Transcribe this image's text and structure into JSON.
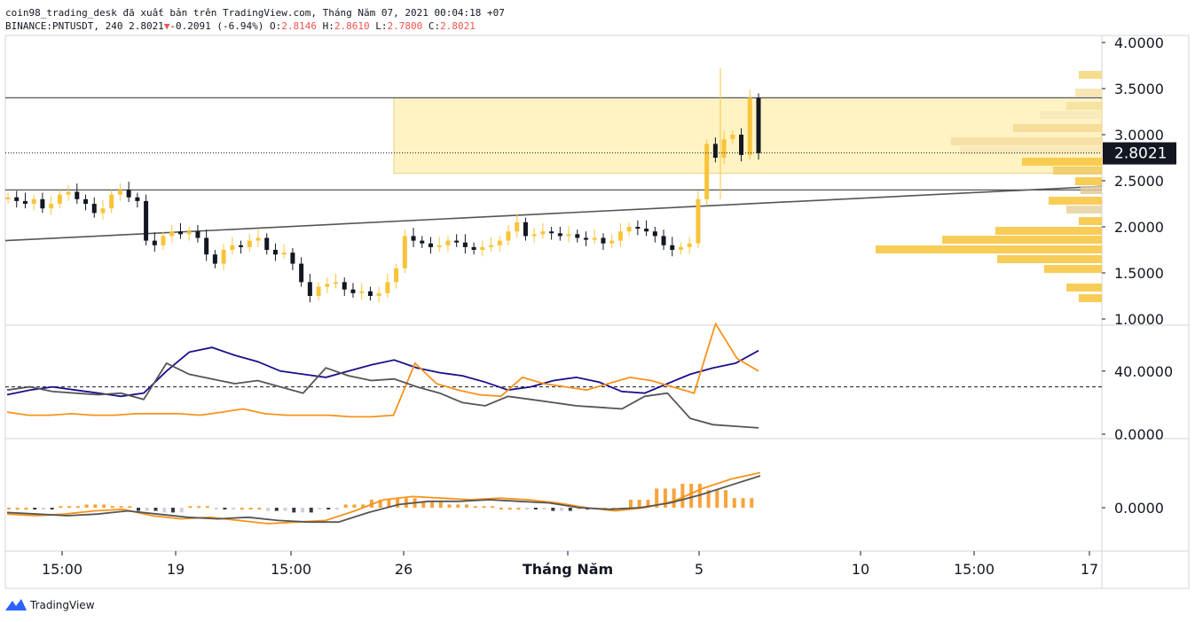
{
  "header": {
    "line1": "coin98_trading_desk đã xuất bản trên TradingView.com, Tháng Năm 07, 2021 00:04:18 +07",
    "symbol": "BINANCE:PNTUSDT, 240 2.8021",
    "change": "-0.2091 (-6.94%)",
    "o_label": " O:",
    "o": "2.8146",
    "h_label": " H:",
    "h": "2.8610",
    "l_label": " L:",
    "l": "2.7800",
    "c_label": " C:",
    "c": "2.8021"
  },
  "brand": {
    "name": "TradingView"
  },
  "colors": {
    "up": "#f7c43a",
    "down": "#131722",
    "zone": "#fff3c4",
    "sma": "#1a0f8c",
    "orange": "#f7931a",
    "gray": "#555555"
  },
  "chart_data": [
    {
      "type": "candlestick",
      "panel": "price",
      "y_ticks": [
        "4.0000",
        "3.5000",
        "3.0000",
        "2.5000",
        "2.0000",
        "1.5000",
        "1.0000"
      ],
      "ylim": [
        0.9,
        4.1
      ],
      "last_price_label": "2.8021",
      "horizontal_levels": [
        3.4,
        2.4
      ],
      "trendline": {
        "from": 1.85,
        "to": 2.44
      },
      "resistance_zone": {
        "low": 2.58,
        "high": 3.4
      },
      "ohlc_sample": [
        2.8146,
        2.861,
        2.78,
        2.8021
      ]
    },
    {
      "type": "line",
      "panel": "indicator",
      "y_ticks": [
        "40.0000",
        "0.0000"
      ],
      "series": [
        {
          "color": "navy",
          "values": [
            25,
            28,
            30,
            28,
            26,
            24,
            26,
            40,
            52,
            55,
            50,
            46,
            40,
            38,
            36,
            40,
            44,
            47,
            42,
            39,
            37,
            33,
            28,
            30,
            34,
            36,
            33,
            27,
            26,
            32,
            38,
            42,
            45,
            53
          ]
        },
        {
          "color": "orange",
          "values": [
            14,
            12,
            12,
            13,
            12,
            12,
            13,
            13,
            13,
            12,
            14,
            16,
            13,
            12,
            12,
            12,
            11,
            11,
            12,
            45,
            32,
            28,
            25,
            24,
            36,
            32,
            30,
            28,
            32,
            36,
            34,
            30,
            26,
            70,
            48,
            40
          ]
        },
        {
          "color": "gray",
          "values": [
            28,
            30,
            27,
            26,
            25,
            26,
            22,
            45,
            38,
            35,
            32,
            34,
            30,
            26,
            42,
            37,
            34,
            35,
            30,
            26,
            20,
            18,
            24,
            22,
            20,
            18,
            17,
            16,
            24,
            26,
            10,
            6,
            5,
            4
          ]
        }
      ],
      "reference": 30
    },
    {
      "type": "histogram",
      "panel": "macd",
      "y_ticks": [
        "0.0000"
      ],
      "values": [
        0,
        -0.01,
        0.01,
        0.02,
        0.01,
        -0.02,
        -0.03,
        0.01,
        -0.01,
        0,
        -0.02,
        -0.03,
        -0.01,
        0.02,
        0.05,
        0.06,
        0.04,
        0.02,
        0.01,
        0.0,
        -0.01,
        -0.02,
        -0.01,
        0,
        0.05,
        0.12,
        0.15,
        0.11,
        0.06
      ],
      "signal_orange": [
        -0.04,
        -0.05,
        -0.04,
        -0.02,
        -0.01,
        -0.05,
        -0.07,
        -0.06,
        -0.08,
        -0.1,
        -0.09,
        -0.08,
        -0.02,
        0.05,
        0.07,
        0.06,
        0.05,
        0.06,
        0.05,
        0.03,
        0.0,
        -0.02,
        0.0,
        0.04,
        0.12,
        0.18,
        0.22
      ],
      "signal_gray": [
        -0.03,
        -0.04,
        -0.05,
        -0.04,
        -0.02,
        -0.04,
        -0.06,
        -0.07,
        -0.06,
        -0.08,
        -0.09,
        -0.09,
        -0.03,
        0.02,
        0.04,
        0.04,
        0.05,
        0.04,
        0.03,
        0.0,
        -0.01,
        0.0,
        0.03,
        0.08,
        0.14,
        0.2
      ]
    },
    {
      "type": "time_axis",
      "labels": [
        "15:00",
        "19",
        "15:00",
        "26",
        "Tháng Năm",
        "5",
        "10",
        "15:00",
        "17"
      ]
    }
  ]
}
